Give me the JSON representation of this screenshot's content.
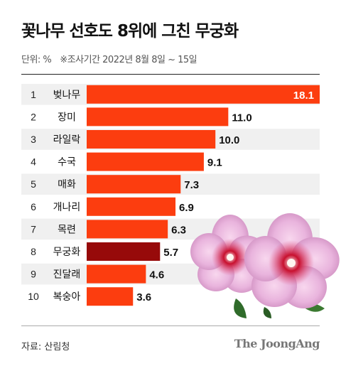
{
  "header": {
    "title": "꽃나무 선호도 8위에 그친 무궁화",
    "unit": "단위: %",
    "meta": "※조사기간 2022년 8월 8일 ~ 15일"
  },
  "footer": {
    "source": "자료: 산림청",
    "brand": "The JoongAng"
  },
  "chart_data": {
    "type": "bar",
    "orientation": "horizontal",
    "ranks": [
      "1",
      "2",
      "3",
      "4",
      "5",
      "6",
      "7",
      "8",
      "9",
      "10"
    ],
    "categories": [
      "벚나무",
      "장미",
      "라일락",
      "수국",
      "매화",
      "개나리",
      "목련",
      "무궁화",
      "진달래",
      "복숭아"
    ],
    "values": [
      18.1,
      11.0,
      10.0,
      9.1,
      7.3,
      6.9,
      6.3,
      5.7,
      4.6,
      3.6
    ],
    "value_labels": [
      "18.1",
      "11.0",
      "10.0",
      "9.1",
      "7.3",
      "6.9",
      "6.3",
      "5.7",
      "4.6",
      "3.6"
    ],
    "highlight_category": "무궁화",
    "colors": {
      "bar": "#fc3d0f",
      "highlight": "#970a0a",
      "row_even": "#f0f0f0",
      "row_odd": "#ffffff"
    },
    "xlim": [
      0,
      18.1
    ],
    "grid": false,
    "legend": "none"
  }
}
